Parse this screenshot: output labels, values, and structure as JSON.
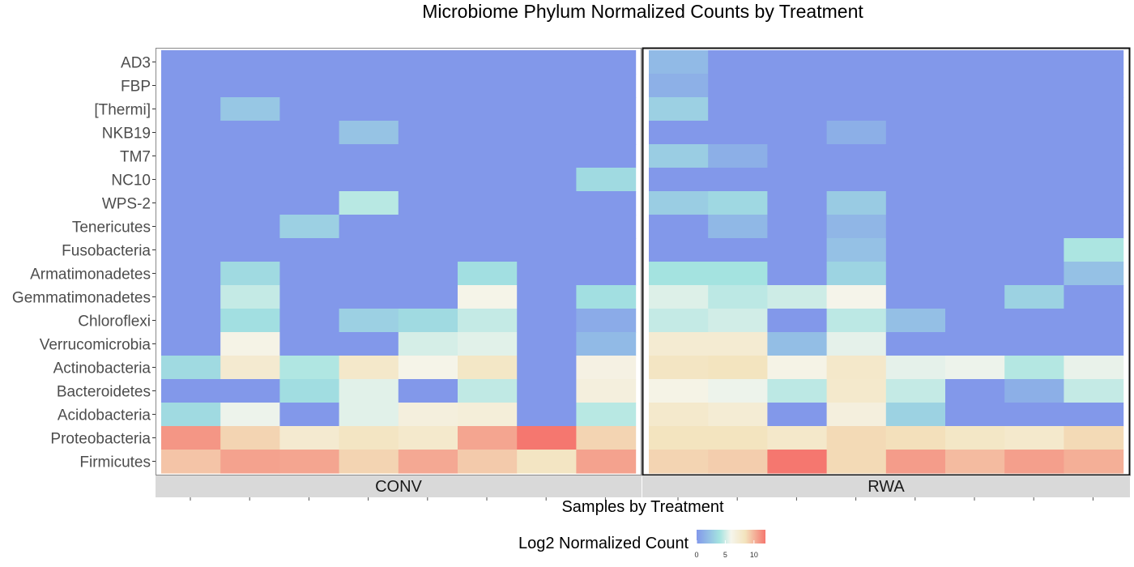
{
  "chart_data": {
    "type": "heatmap",
    "title": "Microbiome Phylum Normalized Counts by Treatment",
    "xlabel": "Samples by Treatment",
    "ylabel": "",
    "legend": {
      "title": "Log2 Normalized Count",
      "ticks": [
        0,
        5,
        10
      ],
      "range": [
        0,
        12
      ],
      "colors": [
        "#8298ea",
        "#a4e3e0",
        "#f5f5ec",
        "#f3e3bd",
        "#f5776f"
      ],
      "placement": "bottom"
    },
    "rows": [
      "AD3",
      "FBP",
      "[Thermi]",
      "NKB19",
      "TM7",
      "NC10",
      "WPS-2",
      "Tenericutes",
      "Fusobacteria",
      "Armatimonadetes",
      "Gemmatimonadetes",
      "Chloroflexi",
      "Verrucomicrobia",
      "Actinobacteria",
      "Bacteroidetes",
      "Acidobacteria",
      "Proteobacteria",
      "Firmicutes"
    ],
    "panels": [
      {
        "name": "CONV",
        "values": [
          [
            0,
            0,
            0,
            0,
            0,
            0,
            0,
            0
          ],
          [
            0,
            0,
            0,
            0,
            0,
            0,
            0,
            0
          ],
          [
            0,
            2.5,
            0,
            0,
            0,
            0,
            0,
            0
          ],
          [
            0,
            0,
            0,
            2.3,
            0,
            0,
            0,
            0
          ],
          [
            0,
            0,
            0,
            0,
            0,
            0,
            0,
            0
          ],
          [
            0,
            0,
            0,
            0,
            0,
            0,
            0,
            3.5
          ],
          [
            0,
            0,
            0,
            4.5,
            0,
            0,
            0,
            0
          ],
          [
            0,
            0,
            3,
            0,
            0,
            0,
            0,
            0
          ],
          [
            0,
            0,
            0,
            0,
            0,
            0,
            0,
            0
          ],
          [
            0,
            3.5,
            0,
            0,
            0,
            3.8,
            0,
            0
          ],
          [
            0,
            4.8,
            0,
            0,
            0,
            6.2,
            0,
            3.8
          ],
          [
            0,
            3.8,
            0,
            3,
            3.5,
            4.8,
            0,
            1
          ],
          [
            0,
            6.3,
            0,
            0,
            5.2,
            5.5,
            0,
            1.8
          ],
          [
            3.5,
            7.5,
            4.3,
            7.8,
            6.2,
            8,
            0,
            6.5
          ],
          [
            0,
            0,
            3.7,
            5.5,
            0,
            4.7,
            0,
            6.8
          ],
          [
            3.5,
            5.8,
            0,
            5.5,
            6.8,
            7,
            0,
            4.5
          ],
          [
            11,
            9,
            7.5,
            8.2,
            7.7,
            10.5,
            12,
            9
          ],
          [
            9.5,
            10.6,
            10.5,
            9,
            10.4,
            9.3,
            8.2,
            10.6
          ]
        ]
      },
      {
        "name": "RWA",
        "values": [
          [
            1.8,
            0,
            0,
            0,
            0,
            0,
            0,
            0
          ],
          [
            1.3,
            0,
            0,
            0,
            0,
            0,
            0,
            0
          ],
          [
            3,
            0,
            0,
            0,
            0,
            0,
            0,
            0
          ],
          [
            0,
            0,
            0,
            1.2,
            0,
            0,
            0,
            0
          ],
          [
            2.8,
            1.2,
            0,
            0,
            0,
            0,
            0,
            0
          ],
          [
            0,
            0,
            0,
            0,
            0,
            0,
            0,
            0
          ],
          [
            2.8,
            3.4,
            0,
            2.7,
            0,
            0,
            0,
            0
          ],
          [
            0,
            1.7,
            0,
            1.6,
            0,
            0,
            0,
            0
          ],
          [
            0,
            0,
            0,
            2.2,
            0,
            0,
            0,
            4.2
          ],
          [
            4,
            4,
            0,
            3.2,
            0,
            0,
            0,
            2.2
          ],
          [
            5.4,
            4.6,
            5,
            6.1,
            0,
            0,
            3.1,
            0
          ],
          [
            4.8,
            5.1,
            0,
            4.6,
            2.1,
            0,
            0,
            0
          ],
          [
            7.4,
            7.4,
            2,
            5.6,
            0,
            0,
            0,
            0
          ],
          [
            8.2,
            8.4,
            6.3,
            7.8,
            5.6,
            5.8,
            4.4,
            5.7
          ],
          [
            6.3,
            5.8,
            4.6,
            7.7,
            4.8,
            0,
            1.2,
            4.8
          ],
          [
            7.7,
            7.3,
            0,
            6.8,
            3.1,
            0,
            0,
            0
          ],
          [
            8.4,
            8.4,
            7.8,
            8.8,
            8.6,
            8,
            7.7,
            8.8
          ],
          [
            9,
            9.2,
            12,
            8.8,
            10.8,
            9.8,
            10.7,
            10.2
          ]
        ]
      }
    ]
  }
}
